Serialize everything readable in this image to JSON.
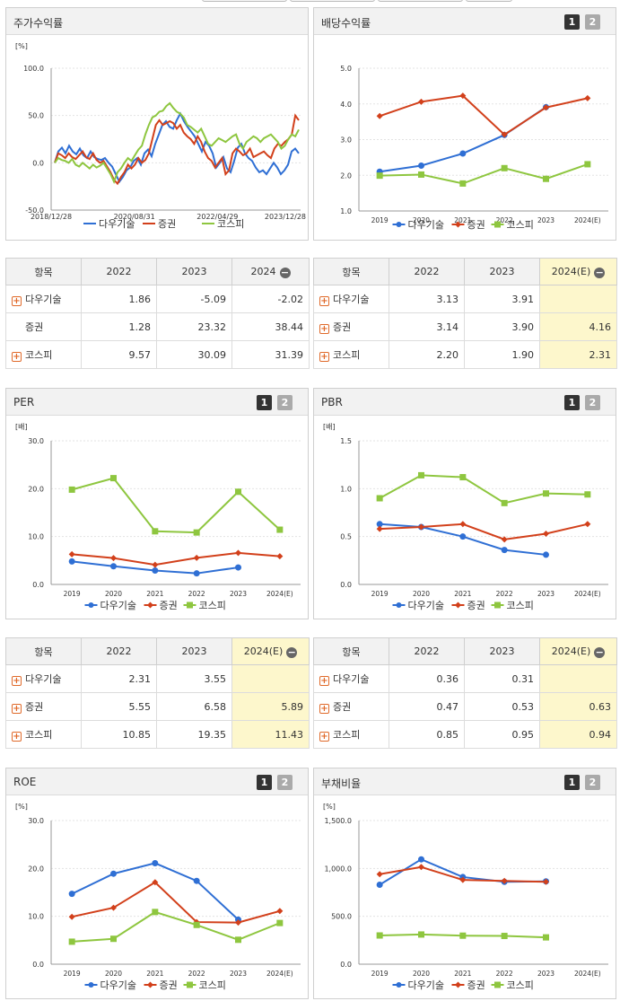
{
  "colors": {
    "dawoo": "#2f6fd4",
    "securities": "#d2401b",
    "kospi": "#8ec63f"
  },
  "legend": [
    "다우기술",
    "증권",
    "코스피"
  ],
  "stock_return": {
    "title": "주가수익률",
    "chart_data": {
      "type": "line",
      "unit": "[%]",
      "yticks": [
        "100.0",
        "50.0",
        "0.0",
        "-50.0"
      ],
      "ylim": [
        -50,
        100
      ],
      "xticks": [
        "2018/12/28",
        "2020/08/31",
        "2022/04/29",
        "2023/12/28"
      ],
      "series": [
        {
          "name": "다우기술",
          "values": [
            0,
            12,
            16,
            10,
            18,
            12,
            9,
            15,
            8,
            5,
            12,
            6,
            4,
            3,
            5,
            0,
            -4,
            -12,
            -20,
            -15,
            -8,
            -5,
            2,
            5,
            -2,
            10,
            14,
            7,
            20,
            30,
            40,
            44,
            38,
            36,
            45,
            52,
            44,
            38,
            33,
            28,
            20,
            12,
            22,
            18,
            10,
            -5,
            0,
            6,
            -6,
            -10,
            2,
            16,
            20,
            10,
            5,
            2,
            -5,
            -10,
            -8,
            -12,
            -6,
            0,
            -5,
            -12,
            -8,
            -2,
            12,
            15,
            10
          ]
        },
        {
          "name": "증권",
          "values": [
            0,
            10,
            8,
            5,
            10,
            6,
            4,
            8,
            12,
            6,
            4,
            10,
            3,
            0,
            2,
            -4,
            -10,
            -18,
            -22,
            -15,
            -10,
            -2,
            -6,
            -2,
            5,
            0,
            3,
            10,
            25,
            40,
            45,
            40,
            42,
            44,
            42,
            36,
            40,
            32,
            28,
            25,
            20,
            28,
            22,
            12,
            5,
            2,
            -5,
            0,
            5,
            -12,
            -8,
            10,
            15,
            12,
            8,
            10,
            15,
            6,
            8,
            10,
            12,
            8,
            5,
            15,
            20,
            18,
            22,
            25,
            30,
            50,
            45
          ]
        },
        {
          "name": "코스피",
          "values": [
            0,
            5,
            3,
            2,
            0,
            4,
            -2,
            -4,
            0,
            -3,
            -6,
            -2,
            -5,
            -3,
            0,
            -6,
            -12,
            -20,
            -10,
            -6,
            0,
            5,
            2,
            8,
            14,
            18,
            30,
            40,
            48,
            50,
            54,
            55,
            60,
            63,
            58,
            54,
            52,
            48,
            40,
            38,
            35,
            32,
            36,
            28,
            20,
            18,
            22,
            26,
            24,
            22,
            25,
            28,
            30,
            20,
            15,
            22,
            25,
            28,
            26,
            22,
            26,
            28,
            30,
            26,
            22,
            15,
            18,
            25,
            30,
            28,
            35
          ]
        }
      ]
    }
  },
  "dividend": {
    "title": "배당수익률",
    "chart_data": {
      "type": "line",
      "unit": "",
      "yticks": [
        "5.0",
        "4.0",
        "3.0",
        "2.0",
        "1.0"
      ],
      "ylim": [
        1,
        5
      ],
      "categories": [
        "2019",
        "2020",
        "2021",
        "2022",
        "2023",
        "2024(E)"
      ],
      "series": [
        {
          "name": "다우기술",
          "values": [
            2.1,
            2.27,
            2.61,
            3.13,
            3.91,
            null
          ]
        },
        {
          "name": "증권",
          "values": [
            3.66,
            4.06,
            4.23,
            3.14,
            3.9,
            4.16
          ]
        },
        {
          "name": "코스피",
          "values": [
            1.99,
            2.02,
            1.77,
            2.2,
            1.9,
            2.31
          ]
        }
      ]
    }
  },
  "per": {
    "title": "PER",
    "chart_data": {
      "type": "line",
      "unit": "[배]",
      "yticks": [
        "30.0",
        "20.0",
        "10.0",
        "0.0"
      ],
      "ylim": [
        0,
        30
      ],
      "categories": [
        "2019",
        "2020",
        "2021",
        "2022",
        "2023",
        "2024(E)"
      ],
      "series": [
        {
          "name": "다우기술",
          "values": [
            4.8,
            3.8,
            2.9,
            2.31,
            3.55,
            null
          ]
        },
        {
          "name": "증권",
          "values": [
            6.3,
            5.5,
            4.1,
            5.55,
            6.58,
            5.89
          ]
        },
        {
          "name": "코스피",
          "values": [
            19.8,
            22.2,
            11.1,
            10.85,
            19.35,
            11.43
          ]
        }
      ]
    }
  },
  "pbr": {
    "title": "PBR",
    "chart_data": {
      "type": "line",
      "unit": "[배]",
      "yticks": [
        "1.5",
        "1.0",
        "0.5",
        "0.0"
      ],
      "ylim": [
        0,
        1.5
      ],
      "categories": [
        "2019",
        "2020",
        "2021",
        "2022",
        "2023",
        "2024(E)"
      ],
      "series": [
        {
          "name": "다우기술",
          "values": [
            0.63,
            0.6,
            0.5,
            0.36,
            0.31,
            null
          ]
        },
        {
          "name": "증권",
          "values": [
            0.58,
            0.6,
            0.63,
            0.47,
            0.53,
            0.63
          ]
        },
        {
          "name": "코스피",
          "values": [
            0.9,
            1.14,
            1.12,
            0.85,
            0.95,
            0.94
          ]
        }
      ]
    }
  },
  "roe": {
    "title": "ROE",
    "chart_data": {
      "type": "line",
      "unit": "[%]",
      "yticks": [
        "30.0",
        "20.0",
        "10.0",
        "0.0"
      ],
      "ylim": [
        0,
        30
      ],
      "categories": [
        "2019",
        "2020",
        "2021",
        "2022",
        "2023",
        "2024(E)"
      ],
      "series": [
        {
          "name": "다우기술",
          "values": [
            14.7,
            18.9,
            21.1,
            17.4,
            9.3,
            null
          ]
        },
        {
          "name": "증권",
          "values": [
            9.9,
            11.8,
            17.1,
            8.8,
            8.7,
            11.1
          ]
        },
        {
          "name": "코스피",
          "values": [
            4.7,
            5.3,
            10.9,
            8.2,
            5.1,
            8.6
          ]
        }
      ]
    }
  },
  "debt": {
    "title": "부채비율",
    "chart_data": {
      "type": "line",
      "unit": "[%]",
      "yticks": [
        "1,500.0",
        "1,000.0",
        "500.0",
        "0.0"
      ],
      "ylim": [
        0,
        1500
      ],
      "categories": [
        "2019",
        "2020",
        "2021",
        "2022",
        "2023",
        "2024(E)"
      ],
      "series": [
        {
          "name": "다우기술",
          "values": [
            830,
            1095,
            910,
            860,
            865,
            null
          ]
        },
        {
          "name": "증권",
          "values": [
            940,
            1015,
            880,
            870,
            860,
            null
          ]
        },
        {
          "name": "코스피",
          "values": [
            300,
            310,
            298,
            295,
            280,
            null
          ]
        }
      ]
    }
  },
  "table_return": {
    "headers": [
      "항목",
      "2022",
      "2023",
      "2024"
    ],
    "rows": [
      {
        "name": "다우기술",
        "v": [
          "1.86",
          "-5.09",
          "-2.02"
        ]
      },
      {
        "name": "증권",
        "v": [
          "1.28",
          "23.32",
          "38.44"
        ]
      },
      {
        "name": "코스피",
        "v": [
          "9.57",
          "30.09",
          "31.39"
        ]
      }
    ]
  },
  "table_dividend": {
    "headers": [
      "항목",
      "2022",
      "2023",
      "2024(E)"
    ],
    "rows": [
      {
        "name": "다우기술",
        "v": [
          "3.13",
          "3.91",
          ""
        ]
      },
      {
        "name": "증권",
        "v": [
          "3.14",
          "3.90",
          "4.16"
        ]
      },
      {
        "name": "코스피",
        "v": [
          "2.20",
          "1.90",
          "2.31"
        ]
      }
    ]
  },
  "table_per": {
    "headers": [
      "항목",
      "2022",
      "2023",
      "2024(E)"
    ],
    "rows": [
      {
        "name": "다우기술",
        "v": [
          "2.31",
          "3.55",
          ""
        ]
      },
      {
        "name": "증권",
        "v": [
          "5.55",
          "6.58",
          "5.89"
        ]
      },
      {
        "name": "코스피",
        "v": [
          "10.85",
          "19.35",
          "11.43"
        ]
      }
    ]
  },
  "table_pbr": {
    "headers": [
      "항목",
      "2022",
      "2023",
      "2024(E)"
    ],
    "rows": [
      {
        "name": "다우기술",
        "v": [
          "0.36",
          "0.31",
          ""
        ]
      },
      {
        "name": "증권",
        "v": [
          "0.47",
          "0.53",
          "0.63"
        ]
      },
      {
        "name": "코스피",
        "v": [
          "0.85",
          "0.95",
          "0.94"
        ]
      }
    ]
  }
}
